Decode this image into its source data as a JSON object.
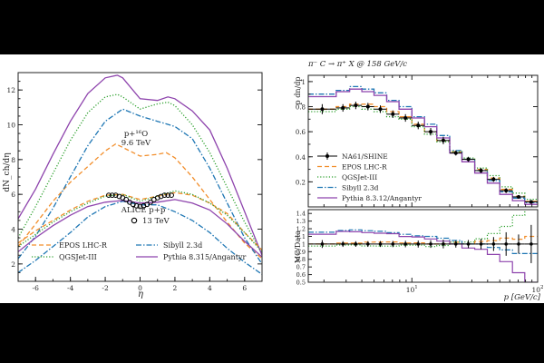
{
  "colors": {
    "epos": "#f28e2b",
    "qgs": "#2ca02c",
    "sibyll": "#1f77b4",
    "pythia": "#8e44ad",
    "data": "#000000"
  },
  "chart_data": [
    {
      "type": "line",
      "xlabel": "η",
      "ylabel": "dN_ch/dη",
      "xlim": [
        -7,
        7
      ],
      "ylim": [
        1,
        13
      ],
      "xticks": [
        -6,
        -4,
        -2,
        0,
        2,
        4,
        6
      ],
      "yticks": [
        2,
        4,
        6,
        8,
        10,
        12
      ],
      "annotations": {
        "system_line1": "p+¹⁶O",
        "system_line2": "9.6 TeV",
        "alice_label": "ALICE p+p",
        "alice_sub": "13 TeV"
      },
      "legend": [
        {
          "key": "epos",
          "label": "EPOS LHC-R"
        },
        {
          "key": "sibyll",
          "label": "Sibyll 2.3d"
        },
        {
          "key": "qgs",
          "label": "QGSJet-III"
        },
        {
          "key": "pythia",
          "label": "Pythia 8.315/Angantyr"
        }
      ],
      "series": [
        {
          "name": "EPOS LHC-R p+O",
          "key": "epos",
          "style": "dashed",
          "x": [
            -7,
            -6,
            -5,
            -4,
            -3,
            -2,
            -1.4,
            -1,
            0,
            1,
            1.5,
            2,
            3,
            4,
            5,
            6,
            7
          ],
          "y": [
            3.0,
            4.3,
            5.6,
            6.7,
            7.6,
            8.5,
            8.9,
            8.7,
            8.2,
            8.3,
            8.4,
            8.1,
            7.0,
            5.7,
            4.4,
            3.2,
            2.3
          ]
        },
        {
          "name": "QGSJet-III p+O",
          "key": "qgs",
          "style": "dotted",
          "x": [
            -7,
            -6,
            -5,
            -4,
            -3,
            -2,
            -1.3,
            -1,
            0,
            1,
            1.6,
            2,
            3,
            4,
            5,
            6,
            7
          ],
          "y": [
            3.5,
            5.3,
            7.2,
            9.1,
            10.7,
            11.6,
            11.75,
            11.6,
            10.9,
            11.2,
            11.3,
            11.1,
            10.0,
            8.4,
            6.4,
            4.4,
            2.6
          ]
        },
        {
          "name": "Sibyll 2.3d p+O",
          "key": "sibyll",
          "style": "dashdot",
          "x": [
            -7,
            -6,
            -5,
            -4,
            -3,
            -2,
            -1,
            0,
            1,
            2,
            3,
            4,
            5,
            6,
            7
          ],
          "y": [
            2.3,
            3.6,
            5.2,
            7.0,
            8.8,
            10.2,
            10.9,
            10.5,
            10.2,
            9.9,
            9.2,
            7.5,
            5.5,
            3.5,
            2.0
          ]
        },
        {
          "name": "Pythia p+O",
          "key": "pythia",
          "style": "solid",
          "x": [
            -7,
            -6,
            -5,
            -4,
            -3,
            -2,
            -1.3,
            -1,
            0,
            1,
            1.6,
            2,
            3,
            4,
            5,
            6,
            7
          ],
          "y": [
            4.6,
            6.3,
            8.3,
            10.2,
            11.8,
            12.7,
            12.85,
            12.7,
            11.5,
            11.4,
            11.6,
            11.5,
            10.8,
            9.7,
            7.5,
            5.0,
            2.5
          ]
        },
        {
          "name": "EPOS LHC-R p+p",
          "key": "epos",
          "style": "dashed",
          "x": [
            -7,
            -6,
            -5,
            -4,
            -3,
            -2,
            -1,
            0,
            1,
            2,
            3,
            4,
            5,
            6,
            7
          ],
          "y": [
            3.2,
            3.9,
            4.5,
            5.1,
            5.6,
            5.95,
            6.0,
            5.7,
            5.9,
            6.1,
            5.95,
            5.5,
            4.9,
            3.8,
            2.8
          ]
        },
        {
          "name": "QGSJet-III p+p",
          "key": "qgs",
          "style": "dotted",
          "x": [
            -7,
            -6,
            -5,
            -4,
            -3,
            -2,
            -1,
            0,
            1,
            2,
            3,
            4,
            5,
            6,
            7
          ],
          "y": [
            3.0,
            3.7,
            4.4,
            5.0,
            5.5,
            5.9,
            6.0,
            5.6,
            5.9,
            6.2,
            6.0,
            5.5,
            4.8,
            3.8,
            2.7
          ]
        },
        {
          "name": "Sibyll 2.3d p+p",
          "key": "sibyll",
          "style": "dashdot",
          "x": [
            -7,
            -6,
            -5,
            -4,
            -3,
            -2,
            -1,
            0,
            1,
            2,
            3,
            4,
            5,
            6,
            7
          ],
          "y": [
            1.5,
            2.2,
            3.0,
            3.8,
            4.7,
            5.3,
            5.6,
            5.4,
            5.4,
            5.0,
            4.5,
            3.8,
            2.9,
            2.1,
            1.4
          ]
        },
        {
          "name": "Pythia p+p",
          "key": "pythia",
          "style": "solid",
          "x": [
            -7,
            -6,
            -5,
            -4,
            -3,
            -2,
            -1,
            0,
            1,
            2,
            3,
            4,
            5,
            6,
            7
          ],
          "y": [
            2.7,
            3.5,
            4.2,
            4.8,
            5.3,
            5.55,
            5.65,
            5.5,
            5.55,
            5.7,
            5.5,
            5.1,
            4.3,
            3.3,
            2.4
          ]
        },
        {
          "name": "ALICE p+p 13 TeV",
          "key": "data",
          "style": "markers",
          "x": [
            -1.8,
            -1.6,
            -1.4,
            -1.2,
            -1.0,
            -0.8,
            -0.6,
            -0.4,
            -0.2,
            0.0,
            0.2,
            0.4,
            0.6,
            0.8,
            1.0,
            1.2,
            1.4,
            1.6,
            1.8
          ],
          "y": [
            5.95,
            5.95,
            5.95,
            5.88,
            5.8,
            5.7,
            5.55,
            5.42,
            5.34,
            5.3,
            5.34,
            5.42,
            5.55,
            5.7,
            5.8,
            5.88,
            5.95,
            5.95,
            5.95
          ]
        }
      ]
    },
    {
      "type": "line",
      "title": "π⁻ C → π⁺ X @ 158 GeV/c",
      "xlabel": "p [GeV/c]",
      "ylabel": "p dn/dp",
      "ratio_ylabel": "MC/Data",
      "xscale": "log",
      "xlim": [
        1.5,
        100
      ],
      "ylim": [
        0,
        1.05
      ],
      "ratio_ylim": [
        0.5,
        1.45
      ],
      "yticks": [
        0.2,
        0.4,
        0.6,
        0.8,
        1
      ],
      "ratio_yticks": [
        0.5,
        0.6,
        0.7,
        0.8,
        0.9,
        1,
        1.1,
        1.2,
        1.3,
        1.4
      ],
      "xtick_labels": [
        {
          "base": "10",
          "exp": "1",
          "value": 10
        },
        {
          "base": "10",
          "exp": "2",
          "value": 100
        }
      ],
      "legend": [
        {
          "key": "data",
          "label": "NA61/SHINE"
        },
        {
          "key": "epos",
          "label": "EPOS LHC-R"
        },
        {
          "key": "qgs",
          "label": "QGSJet-III"
        },
        {
          "key": "sibyll",
          "label": "Sibyll 2.3d"
        },
        {
          "key": "pythia",
          "label": "Pythia 8.3.12/Angantyr"
        }
      ],
      "bin_edges": [
        1.5,
        2.5,
        3.2,
        4,
        5,
        6.3,
        7.9,
        10,
        12.6,
        15.8,
        20,
        25,
        31.6,
        39.8,
        50,
        63,
        79,
        100
      ],
      "data": [
        0.78,
        0.79,
        0.81,
        0.8,
        0.78,
        0.74,
        0.71,
        0.65,
        0.6,
        0.53,
        0.43,
        0.38,
        0.29,
        0.22,
        0.13,
        0.08,
        0.04
      ],
      "data_err": [
        0.04,
        0.03,
        0.03,
        0.03,
        0.03,
        0.03,
        0.03,
        0.03,
        0.03,
        0.03,
        0.02,
        0.02,
        0.02,
        0.02,
        0.02,
        0.01,
        0.01
      ],
      "series": [
        {
          "name": "EPOS LHC-R",
          "key": "epos",
          "style": "dashed",
          "values": [
            0.78,
            0.8,
            0.82,
            0.82,
            0.8,
            0.76,
            0.72,
            0.66,
            0.6,
            0.53,
            0.44,
            0.38,
            0.3,
            0.23,
            0.14,
            0.085,
            0.044
          ]
        },
        {
          "name": "QGSJet-III",
          "key": "qgs",
          "style": "dotted",
          "values": [
            0.76,
            0.78,
            0.8,
            0.78,
            0.76,
            0.72,
            0.7,
            0.64,
            0.58,
            0.52,
            0.44,
            0.39,
            0.31,
            0.25,
            0.16,
            0.11,
            0.06
          ]
        },
        {
          "name": "Sibyll 2.3d",
          "key": "sibyll",
          "style": "dashdot",
          "values": [
            0.9,
            0.93,
            0.96,
            0.94,
            0.91,
            0.85,
            0.8,
            0.72,
            0.66,
            0.57,
            0.45,
            0.38,
            0.29,
            0.21,
            0.12,
            0.07,
            0.035
          ]
        },
        {
          "name": "Pythia 8.3.12/Angantyr",
          "key": "pythia",
          "style": "solid",
          "values": [
            0.88,
            0.92,
            0.94,
            0.92,
            0.89,
            0.84,
            0.78,
            0.71,
            0.64,
            0.55,
            0.43,
            0.36,
            0.27,
            0.19,
            0.1,
            0.05,
            0.02
          ]
        }
      ]
    }
  ]
}
